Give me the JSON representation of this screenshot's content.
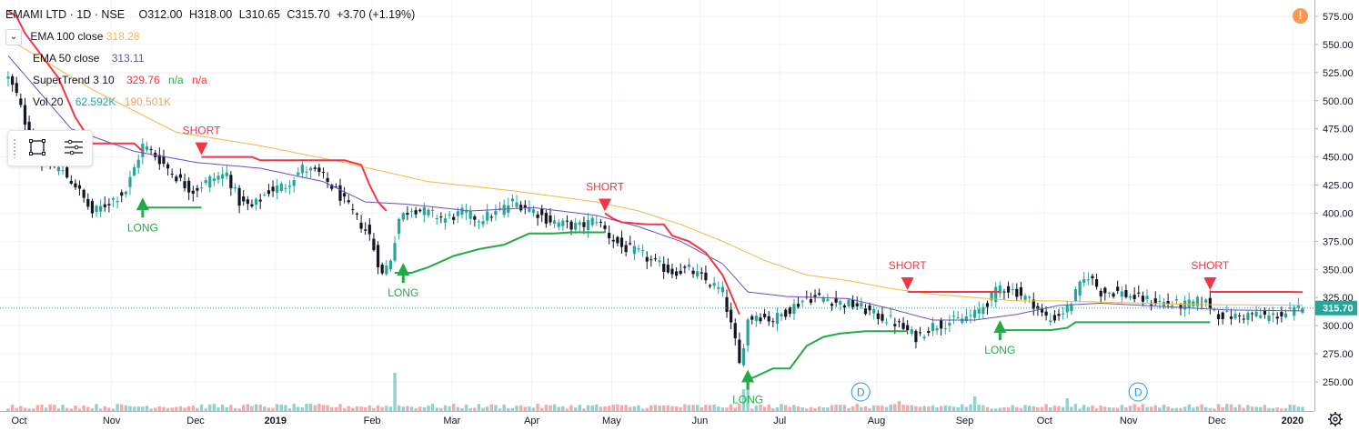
{
  "header": {
    "symbol": "EMAMI LTD · 1D · NSE",
    "open": "O312.00",
    "high": "H318.00",
    "low": "L310.65",
    "close": "C315.70",
    "change": "+3.70 (+1.19%)",
    "collapse_glyph": "⌄"
  },
  "indicators": [
    {
      "name": "EMA 100 close",
      "value": "318.28",
      "color": "#f4b844"
    },
    {
      "name": "EMA 50 close",
      "value": "313.11",
      "color": "#6a4ec6"
    },
    {
      "name": "SuperTrend 3 10",
      "value": "329.76",
      "value2": "n/a",
      "value3": "n/a",
      "color": "#f23645",
      "color2": "#22ab45"
    },
    {
      "name": "Vol 20",
      "value": "62.592K",
      "value2": "190.501K",
      "color": "#26a69a",
      "color2": "#f7a35c"
    }
  ],
  "icons": {
    "toolbox_left": "rectangle-select-icon",
    "toolbox_right": "list-lines-icon",
    "alert": "alert-icon",
    "settings": "gear-icon"
  },
  "alert_glyph": "!",
  "colors": {
    "up": "#26a69a",
    "down": "#131722",
    "long": "#22ab45",
    "short": "#f23645",
    "ema100": "#f4b844",
    "ema50": "#6a4ec6"
  },
  "chart_data": {
    "type": "candlestick",
    "symbol": "EMAMI LTD",
    "interval": "1D",
    "exchange": "NSE",
    "last_price": 315.7,
    "last_price_label": "315.70",
    "y_ticks": [
      "575.00",
      "550.00",
      "525.00",
      "500.00",
      "475.00",
      "450.00",
      "425.00",
      "400.00",
      "375.00",
      "350.00",
      "325.00",
      "300.00",
      "275.00",
      "250.00"
    ],
    "ylim": [
      238,
      585
    ],
    "x_labels": [
      {
        "label": "Oct",
        "x": 0
      },
      {
        "label": "Nov",
        "x": 22
      },
      {
        "label": "Dec",
        "x": 42
      },
      {
        "label": "2019",
        "x": 61
      },
      {
        "label": "Feb",
        "x": 84
      },
      {
        "label": "Mar",
        "x": 103
      },
      {
        "label": "Apr",
        "x": 122
      },
      {
        "label": "May",
        "x": 141
      },
      {
        "label": "Jun",
        "x": 162
      },
      {
        "label": "Jul",
        "x": 181
      },
      {
        "label": "Aug",
        "x": 204
      },
      {
        "label": "Sep",
        "x": 225
      },
      {
        "label": "Oct",
        "x": 244
      },
      {
        "label": "Nov",
        "x": 264
      },
      {
        "label": "Dec",
        "x": 285
      },
      {
        "label": "2020",
        "x": 303
      }
    ],
    "n_bars": 309,
    "close_anchors": [
      [
        0,
        520
      ],
      [
        2,
        505
      ],
      [
        5,
        470
      ],
      [
        8,
        445
      ],
      [
        12,
        440
      ],
      [
        16,
        425
      ],
      [
        20,
        400
      ],
      [
        24,
        410
      ],
      [
        28,
        420
      ],
      [
        32,
        460
      ],
      [
        34,
        455
      ],
      [
        38,
        440
      ],
      [
        42,
        425
      ],
      [
        44,
        420
      ],
      [
        48,
        430
      ],
      [
        52,
        435
      ],
      [
        55,
        410
      ],
      [
        58,
        405
      ],
      [
        62,
        420
      ],
      [
        66,
        425
      ],
      [
        70,
        440
      ],
      [
        74,
        435
      ],
      [
        78,
        420
      ],
      [
        82,
        400
      ],
      [
        86,
        380
      ],
      [
        89,
        345
      ],
      [
        91,
        360
      ],
      [
        93,
        395
      ],
      [
        96,
        405
      ],
      [
        100,
        400
      ],
      [
        104,
        395
      ],
      [
        108,
        400
      ],
      [
        112,
        395
      ],
      [
        116,
        400
      ],
      [
        120,
        410
      ],
      [
        124,
        405
      ],
      [
        128,
        395
      ],
      [
        132,
        390
      ],
      [
        136,
        388
      ],
      [
        140,
        395
      ],
      [
        143,
        380
      ],
      [
        146,
        370
      ],
      [
        150,
        365
      ],
      [
        154,
        355
      ],
      [
        158,
        348
      ],
      [
        162,
        350
      ],
      [
        166,
        340
      ],
      [
        170,
        330
      ],
      [
        173,
        285
      ],
      [
        174,
        265
      ],
      [
        176,
        305
      ],
      [
        178,
        310
      ],
      [
        182,
        305
      ],
      [
        186,
        315
      ],
      [
        190,
        325
      ],
      [
        194,
        325
      ],
      [
        198,
        320
      ],
      [
        202,
        318
      ],
      [
        206,
        310
      ],
      [
        210,
        305
      ],
      [
        214,
        295
      ],
      [
        216,
        290
      ],
      [
        220,
        300
      ],
      [
        226,
        305
      ],
      [
        230,
        310
      ],
      [
        234,
        325
      ],
      [
        236,
        335
      ],
      [
        240,
        330
      ],
      [
        244,
        320
      ],
      [
        246,
        310
      ],
      [
        248,
        305
      ],
      [
        252,
        315
      ],
      [
        255,
        335
      ],
      [
        257,
        345
      ],
      [
        260,
        330
      ],
      [
        264,
        330
      ],
      [
        268,
        325
      ],
      [
        272,
        322
      ],
      [
        276,
        320
      ],
      [
        280,
        318
      ],
      [
        284,
        322
      ],
      [
        286,
        318
      ],
      [
        288,
        310
      ],
      [
        292,
        308
      ],
      [
        296,
        310
      ],
      [
        300,
        308
      ],
      [
        304,
        311
      ],
      [
        308,
        315.7
      ]
    ],
    "volume_spikes": [
      [
        92,
        4.2
      ],
      [
        176,
        3.5
      ],
      [
        175,
        2.4
      ],
      [
        230,
        1.6
      ],
      [
        252,
        1.4
      ],
      [
        212,
        1.1
      ]
    ],
    "ema100_anchors": [
      [
        0,
        555
      ],
      [
        20,
        510
      ],
      [
        40,
        472
      ],
      [
        60,
        460
      ],
      [
        80,
        445
      ],
      [
        100,
        428
      ],
      [
        120,
        420
      ],
      [
        140,
        410
      ],
      [
        150,
        402
      ],
      [
        160,
        390
      ],
      [
        170,
        375
      ],
      [
        180,
        358
      ],
      [
        190,
        345
      ],
      [
        200,
        340
      ],
      [
        210,
        333
      ],
      [
        220,
        328
      ],
      [
        230,
        325
      ],
      [
        240,
        322
      ],
      [
        250,
        322
      ],
      [
        260,
        321
      ],
      [
        270,
        320
      ],
      [
        280,
        319
      ],
      [
        290,
        318.5
      ],
      [
        308,
        318.28
      ]
    ],
    "ema50_anchors": [
      [
        0,
        540
      ],
      [
        15,
        475
      ],
      [
        30,
        455
      ],
      [
        45,
        445
      ],
      [
        60,
        440
      ],
      [
        75,
        428
      ],
      [
        85,
        410
      ],
      [
        95,
        408
      ],
      [
        110,
        402
      ],
      [
        125,
        405
      ],
      [
        140,
        398
      ],
      [
        150,
        388
      ],
      [
        160,
        375
      ],
      [
        170,
        355
      ],
      [
        176,
        330
      ],
      [
        185,
        326
      ],
      [
        200,
        324
      ],
      [
        210,
        315
      ],
      [
        220,
        305
      ],
      [
        230,
        305
      ],
      [
        240,
        310
      ],
      [
        250,
        318
      ],
      [
        260,
        320
      ],
      [
        270,
        318
      ],
      [
        280,
        316
      ],
      [
        290,
        314
      ],
      [
        308,
        313.11
      ]
    ],
    "supertrend": [
      {
        "dir": "short",
        "pts": [
          [
            0,
            580
          ],
          [
            2,
            575
          ],
          [
            4,
            560
          ],
          [
            8,
            540
          ],
          [
            12,
            520
          ],
          [
            16,
            485
          ],
          [
            20,
            462
          ],
          [
            30,
            462
          ],
          [
            32,
            455
          ]
        ]
      },
      {
        "dir": "long",
        "pts": [
          [
            32,
            405
          ],
          [
            34,
            405
          ],
          [
            40,
            405
          ],
          [
            46,
            405
          ]
        ]
      },
      {
        "dir": "short",
        "pts": [
          [
            46,
            450
          ],
          [
            50,
            450
          ],
          [
            58,
            450
          ],
          [
            60,
            447
          ],
          [
            80,
            447
          ],
          [
            84,
            443
          ],
          [
            86,
            425
          ],
          [
            88,
            410
          ],
          [
            90,
            402
          ]
        ]
      },
      {
        "dir": "long",
        "pts": [
          [
            92,
            347
          ],
          [
            96,
            347
          ],
          [
            100,
            352
          ],
          [
            106,
            362
          ],
          [
            112,
            368
          ],
          [
            118,
            372
          ],
          [
            124,
            382
          ],
          [
            130,
            382
          ],
          [
            134,
            383
          ],
          [
            142,
            383
          ]
        ]
      },
      {
        "dir": "short",
        "pts": [
          [
            142,
            400
          ],
          [
            144,
            395
          ],
          [
            146,
            392
          ],
          [
            152,
            390
          ],
          [
            156,
            390
          ],
          [
            158,
            380
          ],
          [
            162,
            375
          ],
          [
            166,
            365
          ],
          [
            170,
            345
          ],
          [
            172,
            328
          ],
          [
            174,
            310
          ]
        ]
      },
      {
        "dir": "long",
        "pts": [
          [
            176,
            252
          ],
          [
            178,
            255
          ],
          [
            182,
            262
          ],
          [
            186,
            262
          ],
          [
            190,
            282
          ],
          [
            194,
            290
          ],
          [
            198,
            293
          ],
          [
            204,
            295
          ],
          [
            210,
            295
          ],
          [
            214,
            295
          ]
        ]
      },
      {
        "dir": "short",
        "pts": [
          [
            214,
            330
          ],
          [
            218,
            330
          ],
          [
            228,
            330
          ],
          [
            232,
            330
          ],
          [
            236,
            330
          ]
        ]
      },
      {
        "dir": "long",
        "pts": [
          [
            236,
            296
          ],
          [
            240,
            296
          ],
          [
            248,
            296
          ],
          [
            252,
            298
          ],
          [
            254,
            303
          ],
          [
            262,
            303
          ],
          [
            274,
            303
          ],
          [
            286,
            303
          ]
        ]
      },
      {
        "dir": "short",
        "pts": [
          [
            286,
            330
          ],
          [
            290,
            330
          ],
          [
            298,
            330
          ],
          [
            304,
            330
          ],
          [
            308,
            329.76
          ]
        ]
      }
    ],
    "signals": [
      {
        "type": "long",
        "x": 32,
        "label": "LONG"
      },
      {
        "type": "short",
        "x": 46,
        "label": "SHORT"
      },
      {
        "type": "long",
        "x": 94,
        "label": "LONG"
      },
      {
        "type": "short",
        "x": 142,
        "label": "SHORT"
      },
      {
        "type": "long",
        "x": 176,
        "label": "LONG"
      },
      {
        "type": "short",
        "x": 214,
        "label": "SHORT"
      },
      {
        "type": "long",
        "x": 236,
        "label": "LONG"
      },
      {
        "type": "short",
        "x": 286,
        "label": "SHORT"
      }
    ],
    "dividends": [
      {
        "x": 202,
        "label": "D"
      },
      {
        "x": 268,
        "label": "D"
      }
    ]
  }
}
